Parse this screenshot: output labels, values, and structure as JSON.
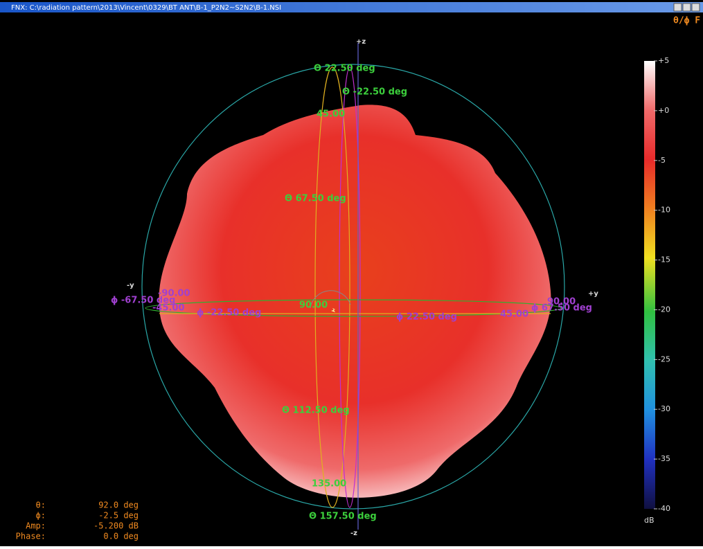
{
  "window": {
    "title": "FNX: C:\\radiation pattern\\2013\\Vincent\\0329\\BT ANT\\B-1_P2N2~S2N2\\B-1.NSI",
    "mode": "θ/ϕ F"
  },
  "axes": {
    "pz": "+z",
    "nz": "-z",
    "py": "+y",
    "ny": "-y"
  },
  "theta_labels": [
    "Θ 22.50 deg",
    "Θ -22.50 deg",
    "45.00",
    "Θ 67.50 deg",
    "90.00",
    "Θ 112.50 deg",
    "135.00",
    "Θ 157.50 deg"
  ],
  "phi_labels": [
    "ϕ -67.50 deg",
    "ϕ -22.50 deg",
    "ϕ 22.50 deg",
    "ϕ 67.50 deg",
    "-45.00",
    "45.00",
    "-90.00",
    "90.00"
  ],
  "colorbar": {
    "range": [
      -40,
      5
    ],
    "unit": "dB",
    "ticks": [
      {
        "value": 5,
        "label": "+5"
      },
      {
        "value": 0,
        "label": "+0"
      },
      -5,
      -10,
      -15,
      -20,
      -25,
      -30,
      -35,
      -40
    ]
  },
  "readout": [
    {
      "label": "θ:",
      "value": "92.0 deg"
    },
    {
      "label": "ϕ:",
      "value": "-2.5 deg"
    },
    {
      "label": "Amp:",
      "value": "-5.200 dB"
    },
    {
      "label": "Phase:",
      "value": "0.0 deg"
    }
  ]
}
